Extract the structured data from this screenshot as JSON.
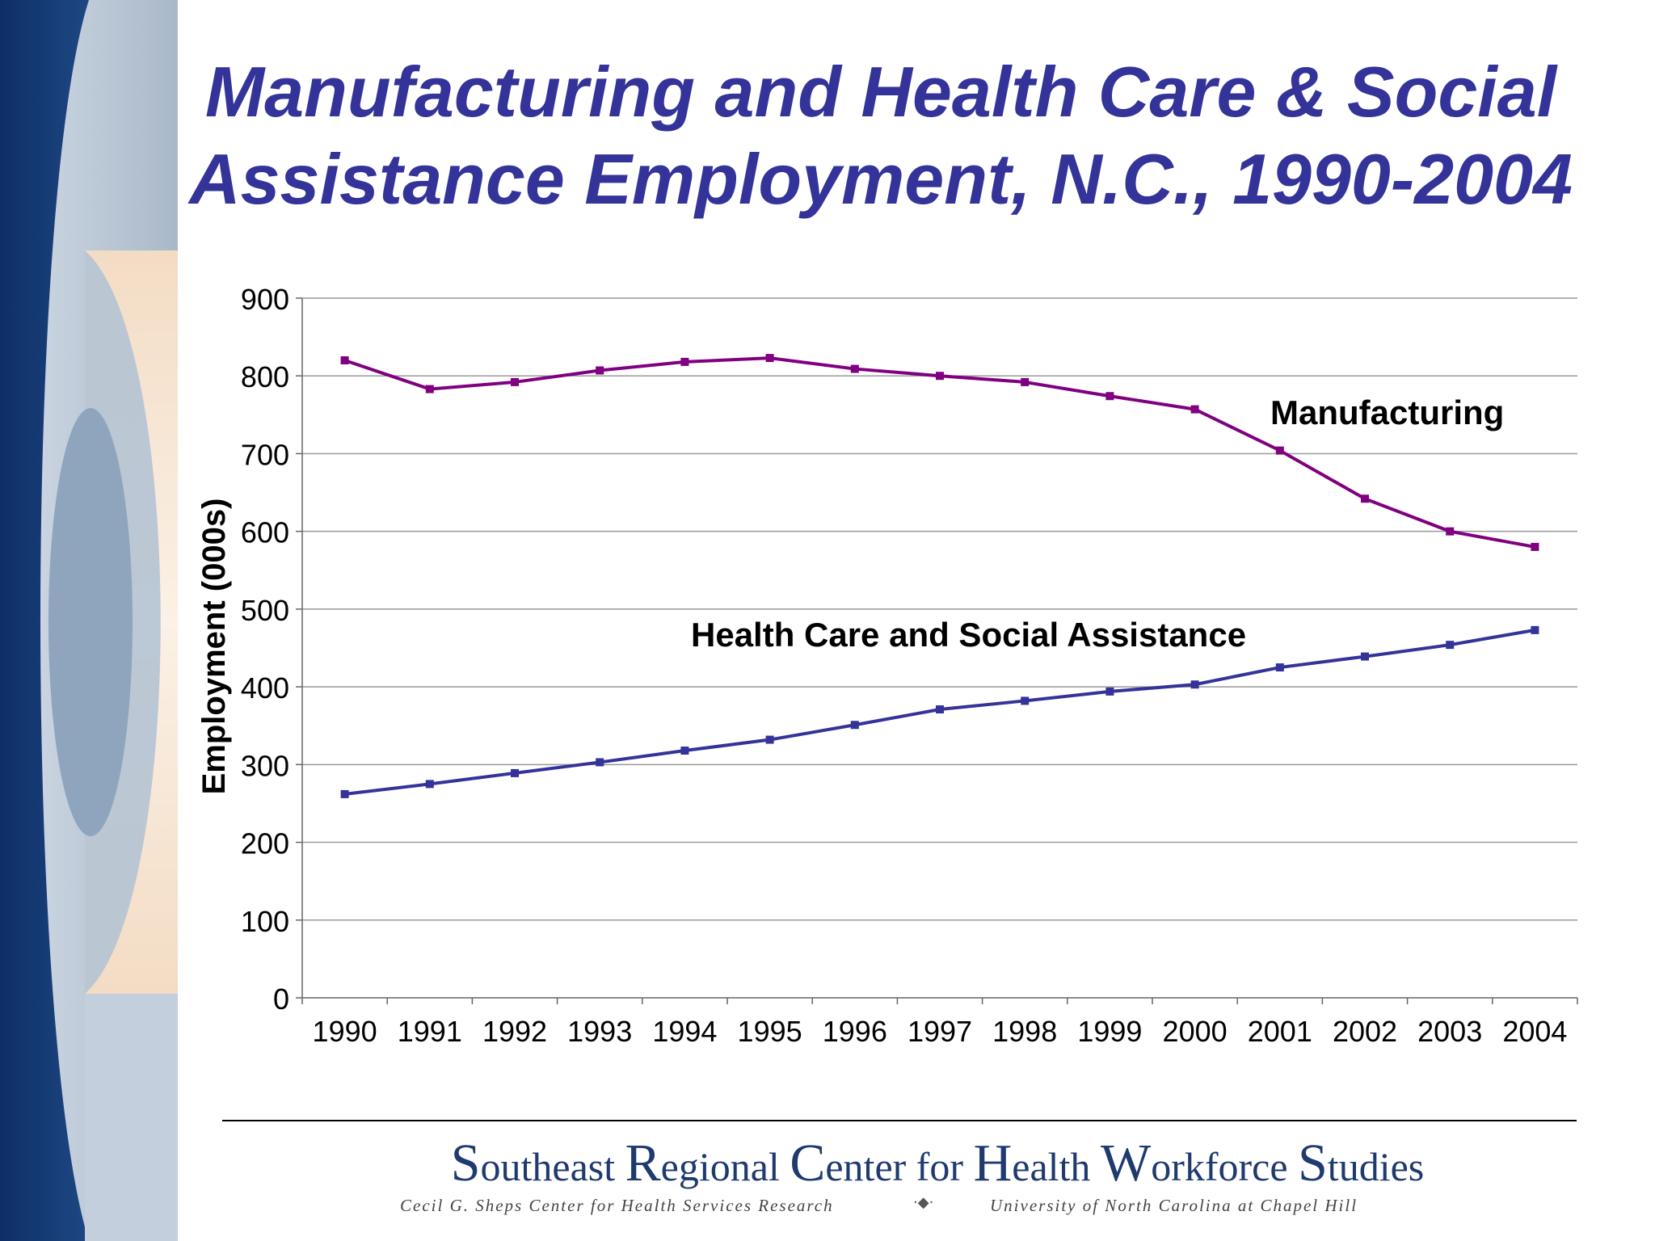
{
  "slide": {
    "title": "Manufacturing and Health Care & Social Assistance Employment, N.C., 1990-2004"
  },
  "colors": {
    "title": "#33339a",
    "manufacturing": "#800080",
    "health": "#33339a",
    "grid": "#999999"
  },
  "chart_data": {
    "type": "line",
    "x": [
      "1990",
      "1991",
      "1992",
      "1993",
      "1994",
      "1995",
      "1996",
      "1997",
      "1998",
      "1999",
      "2000",
      "2001",
      "2002",
      "2003",
      "2004"
    ],
    "series": [
      {
        "name": "Manufacturing",
        "values": [
          820,
          783,
          792,
          807,
          818,
          823,
          809,
          800,
          792,
          774,
          757,
          704,
          642,
          600,
          580
        ]
      },
      {
        "name": "Health Care and Social Assistance",
        "values": [
          262,
          275,
          289,
          303,
          318,
          332,
          351,
          371,
          382,
          394,
          403,
          425,
          439,
          454,
          473
        ]
      }
    ],
    "ylabel": "Employment (000s)",
    "ylim": [
      0,
      900
    ],
    "yticks": [
      "0",
      "100",
      "200",
      "300",
      "400",
      "500",
      "600",
      "700",
      "800",
      "900"
    ],
    "grid": true
  },
  "footer": {
    "main_segments": [
      {
        "cap": "S",
        "rest": "outheast "
      },
      {
        "cap": "R",
        "rest": "egional "
      },
      {
        "cap": "C",
        "rest": "enter for "
      },
      {
        "cap": "H",
        "rest": "ealth "
      },
      {
        "cap": "W",
        "rest": "orkforce "
      },
      {
        "cap": "S",
        "rest": "tudies"
      }
    ],
    "sub_left": "Cecil G. Sheps Center for Health Services Research",
    "sub_right": "University of North Carolina at Chapel Hill"
  }
}
